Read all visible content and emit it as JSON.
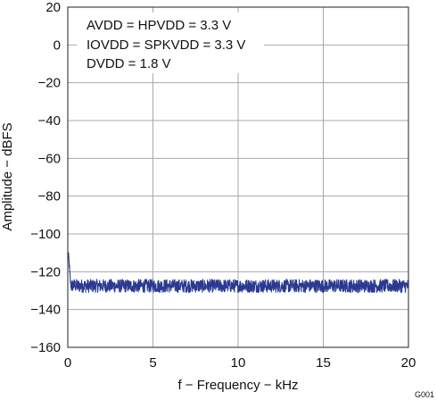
{
  "chart_data": {
    "type": "line",
    "title": "",
    "xlabel": "f − Frequency − kHz",
    "ylabel": "Amplitude − dBFS",
    "xlim": [
      0,
      20
    ],
    "ylim": [
      -160,
      20
    ],
    "xticks": [
      0,
      5,
      10,
      15,
      20
    ],
    "yticks": [
      20,
      0,
      -20,
      -40,
      -60,
      -80,
      -100,
      -120,
      -140,
      -160
    ],
    "xtick_labels": [
      "0",
      "5",
      "10",
      "15",
      "20"
    ],
    "ytick_labels": [
      "20",
      "0",
      "−20",
      "−40",
      "−60",
      "−80",
      "−100",
      "−120",
      "−140",
      "−160"
    ],
    "grid": true,
    "legend": "none",
    "annotations": [
      "AVDD = HPVDD = 3.3 V",
      "IOVDD = SPKVDD = 3.3 V",
      "DVDD = 1.8 V"
    ],
    "figure_id": "G001",
    "series": [
      {
        "color": "#2b3990",
        "x": [
          0.05,
          0.1,
          0.15,
          0.2,
          0.3,
          0.5,
          1,
          2,
          3,
          4,
          5,
          6,
          7,
          8,
          9,
          10,
          11,
          12,
          13,
          14,
          15,
          16,
          17,
          18,
          19,
          20
        ],
        "y": [
          -112,
          -118,
          -125,
          -128,
          -127,
          -127.5,
          -127.5,
          -127.5,
          -127.5,
          -127.5,
          -127.5,
          -127.5,
          -127.5,
          -127.5,
          -127.5,
          -127.5,
          -127.5,
          -127.5,
          -127.5,
          -127.5,
          -127.5,
          -127.5,
          -127.5,
          -127.5,
          -127.5,
          -127.5
        ],
        "noise_band_db": [
          -131,
          -124
        ]
      }
    ]
  }
}
